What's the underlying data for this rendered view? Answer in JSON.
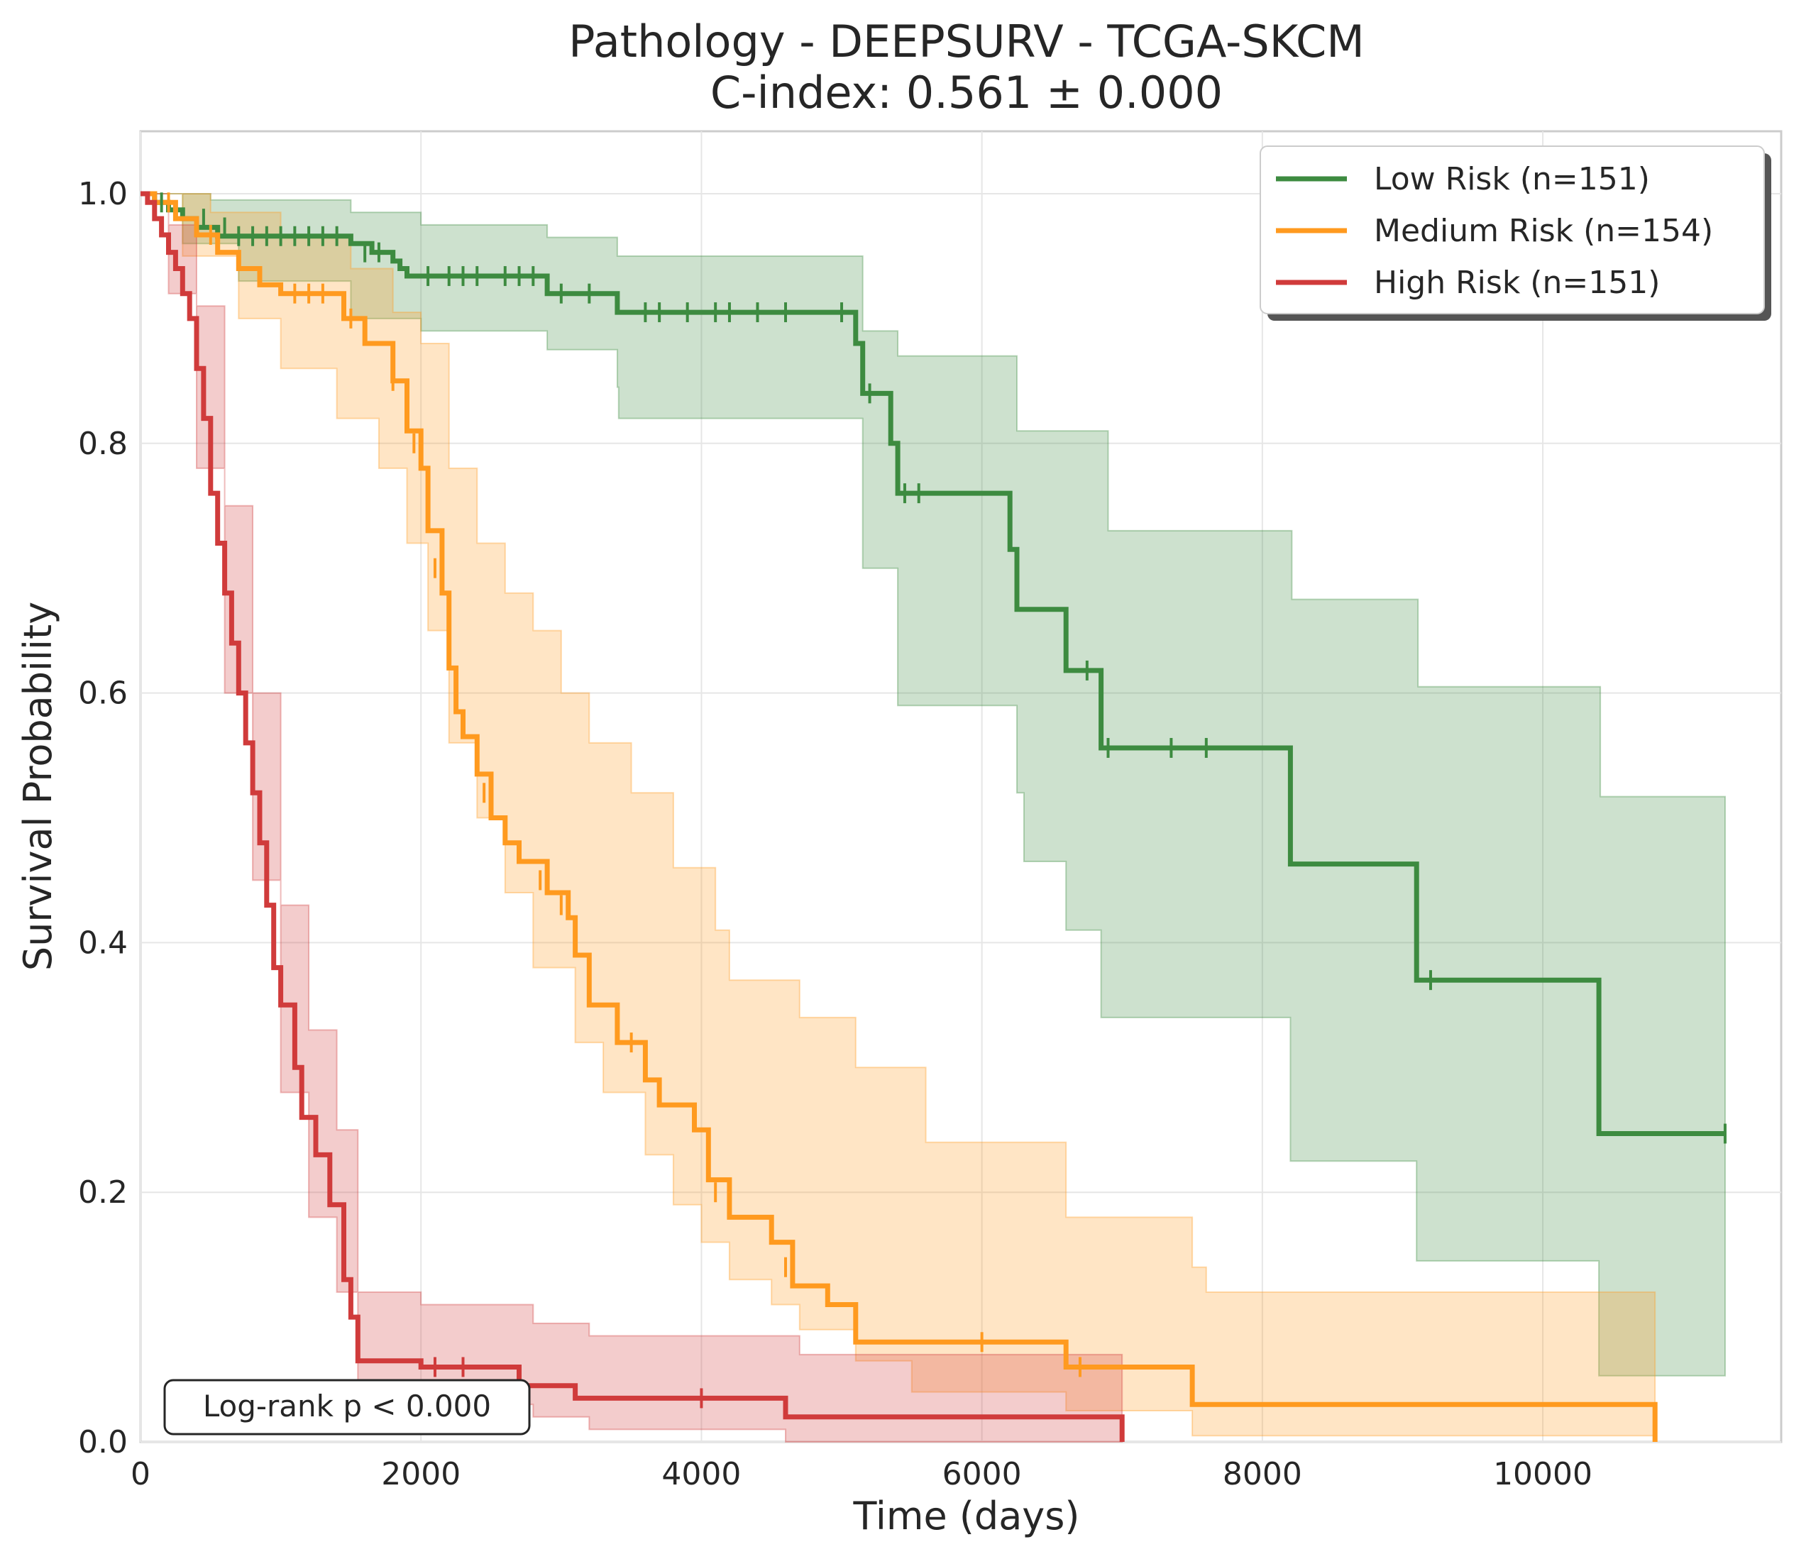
{
  "chart_data": {
    "type": "line",
    "title": "Pathology - DEEPSURV - TCGA-SKCM",
    "subtitle": "C-index: 0.561 ± 0.000",
    "xlabel": "Time (days)",
    "ylabel": "Survival Probability",
    "xlim": [
      0,
      11700
    ],
    "ylim": [
      0.0,
      1.05
    ],
    "x_ticks": [
      0,
      2000,
      4000,
      6000,
      8000,
      10000
    ],
    "y_ticks": [
      0.0,
      0.2,
      0.4,
      0.6,
      0.8,
      1.0
    ],
    "x_tick_labels": [
      "0",
      "2000",
      "4000",
      "6000",
      "8000",
      "10000"
    ],
    "y_tick_labels": [
      "0.0",
      "0.2",
      "0.4",
      "0.6",
      "0.8",
      "1.0"
    ],
    "grid": true,
    "legend_position": "top-right",
    "annotation": "Log-rank p < 0.000",
    "series": [
      {
        "name": "Low Risk (n=151)",
        "color": "#3d8b40",
        "steps": [
          [
            0,
            1.0
          ],
          [
            100,
            0.993
          ],
          [
            200,
            0.987
          ],
          [
            300,
            0.98
          ],
          [
            400,
            0.973
          ],
          [
            550,
            0.966
          ],
          [
            700,
            0.966
          ],
          [
            1500,
            0.96
          ],
          [
            1650,
            0.953
          ],
          [
            1800,
            0.946
          ],
          [
            1850,
            0.94
          ],
          [
            1900,
            0.934
          ],
          [
            2900,
            0.92
          ],
          [
            3400,
            0.905
          ],
          [
            5100,
            0.88
          ],
          [
            5150,
            0.84
          ],
          [
            5300,
            0.84
          ],
          [
            5350,
            0.8
          ],
          [
            5400,
            0.76
          ],
          [
            6150,
            0.76
          ],
          [
            6200,
            0.715
          ],
          [
            6250,
            0.667
          ],
          [
            6600,
            0.618
          ],
          [
            6850,
            0.556
          ],
          [
            8200,
            0.463
          ],
          [
            9100,
            0.37
          ],
          [
            10400,
            0.247
          ],
          [
            11300,
            0.247
          ]
        ],
        "ci_upper": [
          [
            0,
            1.0
          ],
          [
            500,
            0.995
          ],
          [
            1500,
            0.985
          ],
          [
            2000,
            0.975
          ],
          [
            2900,
            0.965
          ],
          [
            3400,
            0.95
          ],
          [
            5100,
            0.95
          ],
          [
            5150,
            0.89
          ],
          [
            5400,
            0.87
          ],
          [
            6200,
            0.87
          ],
          [
            6250,
            0.81
          ],
          [
            6850,
            0.81
          ],
          [
            6900,
            0.73
          ],
          [
            8200,
            0.73
          ],
          [
            8210,
            0.675
          ],
          [
            9100,
            0.675
          ],
          [
            9110,
            0.605
          ],
          [
            10400,
            0.605
          ],
          [
            10410,
            0.517
          ],
          [
            11300,
            0.517
          ]
        ],
        "ci_lower": [
          [
            0,
            1.0
          ],
          [
            300,
            0.96
          ],
          [
            700,
            0.93
          ],
          [
            1500,
            0.9
          ],
          [
            2000,
            0.89
          ],
          [
            2900,
            0.875
          ],
          [
            3400,
            0.845
          ],
          [
            3410,
            0.82
          ],
          [
            5100,
            0.82
          ],
          [
            5150,
            0.7
          ],
          [
            5400,
            0.59
          ],
          [
            6200,
            0.59
          ],
          [
            6250,
            0.52
          ],
          [
            6300,
            0.465
          ],
          [
            6600,
            0.41
          ],
          [
            6850,
            0.34
          ],
          [
            8200,
            0.225
          ],
          [
            9100,
            0.145
          ],
          [
            10400,
            0.053
          ],
          [
            11300,
            0.053
          ]
        ],
        "censored": [
          [
            150,
            0.993
          ],
          [
            450,
            0.98
          ],
          [
            600,
            0.973
          ],
          [
            700,
            0.966
          ],
          [
            800,
            0.966
          ],
          [
            900,
            0.966
          ],
          [
            1000,
            0.966
          ],
          [
            1100,
            0.966
          ],
          [
            1200,
            0.966
          ],
          [
            1300,
            0.966
          ],
          [
            1400,
            0.966
          ],
          [
            1600,
            0.953
          ],
          [
            1700,
            0.953
          ],
          [
            2050,
            0.934
          ],
          [
            2200,
            0.934
          ],
          [
            2300,
            0.934
          ],
          [
            2400,
            0.934
          ],
          [
            2600,
            0.934
          ],
          [
            2700,
            0.934
          ],
          [
            2800,
            0.934
          ],
          [
            3000,
            0.92
          ],
          [
            3200,
            0.92
          ],
          [
            3600,
            0.905
          ],
          [
            3700,
            0.905
          ],
          [
            3900,
            0.905
          ],
          [
            4100,
            0.905
          ],
          [
            4200,
            0.905
          ],
          [
            4400,
            0.905
          ],
          [
            4600,
            0.905
          ],
          [
            5000,
            0.905
          ],
          [
            5200,
            0.84
          ],
          [
            5450,
            0.76
          ],
          [
            5550,
            0.76
          ],
          [
            6750,
            0.618
          ],
          [
            6900,
            0.556
          ],
          [
            7350,
            0.556
          ],
          [
            7600,
            0.556
          ],
          [
            9200,
            0.37
          ],
          [
            11300,
            0.247
          ]
        ]
      },
      {
        "name": "Medium Risk (n=154)",
        "color": "#ff9a1f",
        "steps": [
          [
            0,
            1.0
          ],
          [
            100,
            0.993
          ],
          [
            250,
            0.98
          ],
          [
            400,
            0.967
          ],
          [
            550,
            0.953
          ],
          [
            700,
            0.94
          ],
          [
            850,
            0.927
          ],
          [
            1000,
            0.92
          ],
          [
            1450,
            0.9
          ],
          [
            1600,
            0.88
          ],
          [
            1800,
            0.85
          ],
          [
            1900,
            0.81
          ],
          [
            2000,
            0.78
          ],
          [
            2050,
            0.73
          ],
          [
            2150,
            0.68
          ],
          [
            2200,
            0.62
          ],
          [
            2250,
            0.585
          ],
          [
            2300,
            0.565
          ],
          [
            2400,
            0.535
          ],
          [
            2500,
            0.5
          ],
          [
            2600,
            0.48
          ],
          [
            2700,
            0.465
          ],
          [
            2900,
            0.44
          ],
          [
            3050,
            0.42
          ],
          [
            3100,
            0.39
          ],
          [
            3200,
            0.35
          ],
          [
            3400,
            0.32
          ],
          [
            3600,
            0.29
          ],
          [
            3700,
            0.27
          ],
          [
            3950,
            0.25
          ],
          [
            4050,
            0.21
          ],
          [
            4200,
            0.18
          ],
          [
            4500,
            0.16
          ],
          [
            4650,
            0.125
          ],
          [
            4900,
            0.11
          ],
          [
            5100,
            0.08
          ],
          [
            6600,
            0.06
          ],
          [
            7500,
            0.03
          ],
          [
            10800,
            0.03
          ],
          [
            10800,
            0.0
          ]
        ],
        "ci_upper": [
          [
            0,
            1.0
          ],
          [
            500,
            0.985
          ],
          [
            1000,
            0.965
          ],
          [
            1500,
            0.94
          ],
          [
            1800,
            0.905
          ],
          [
            2000,
            0.88
          ],
          [
            2200,
            0.78
          ],
          [
            2400,
            0.72
          ],
          [
            2600,
            0.68
          ],
          [
            2800,
            0.65
          ],
          [
            3000,
            0.6
          ],
          [
            3200,
            0.56
          ],
          [
            3500,
            0.52
          ],
          [
            3800,
            0.46
          ],
          [
            4100,
            0.41
          ],
          [
            4200,
            0.37
          ],
          [
            4700,
            0.34
          ],
          [
            5100,
            0.3
          ],
          [
            5600,
            0.24
          ],
          [
            6600,
            0.18
          ],
          [
            7500,
            0.14
          ],
          [
            7600,
            0.12
          ],
          [
            10800,
            0.12
          ]
        ],
        "ci_lower": [
          [
            0,
            1.0
          ],
          [
            300,
            0.95
          ],
          [
            700,
            0.9
          ],
          [
            1000,
            0.86
          ],
          [
            1400,
            0.82
          ],
          [
            1700,
            0.78
          ],
          [
            1900,
            0.72
          ],
          [
            2050,
            0.65
          ],
          [
            2200,
            0.56
          ],
          [
            2400,
            0.5
          ],
          [
            2600,
            0.44
          ],
          [
            2800,
            0.38
          ],
          [
            3100,
            0.32
          ],
          [
            3300,
            0.28
          ],
          [
            3600,
            0.23
          ],
          [
            3800,
            0.19
          ],
          [
            4000,
            0.16
          ],
          [
            4200,
            0.13
          ],
          [
            4500,
            0.11
          ],
          [
            4700,
            0.09
          ],
          [
            5100,
            0.065
          ],
          [
            5500,
            0.04
          ],
          [
            6600,
            0.025
          ],
          [
            7500,
            0.005
          ],
          [
            10800,
            0.0
          ]
        ],
        "censored": [
          [
            200,
            0.993
          ],
          [
            500,
            0.967
          ],
          [
            1100,
            0.92
          ],
          [
            1200,
            0.92
          ],
          [
            1300,
            0.92
          ],
          [
            1500,
            0.9
          ],
          [
            1800,
            0.85
          ],
          [
            1950,
            0.8
          ],
          [
            2100,
            0.7
          ],
          [
            2450,
            0.52
          ],
          [
            2850,
            0.45
          ],
          [
            3000,
            0.43
          ],
          [
            3500,
            0.32
          ],
          [
            3950,
            0.26
          ],
          [
            4100,
            0.2
          ],
          [
            4600,
            0.14
          ],
          [
            6000,
            0.08
          ],
          [
            6700,
            0.06
          ]
        ]
      },
      {
        "name": "High Risk (n=151)",
        "color": "#d03b3b",
        "steps": [
          [
            0,
            1.0
          ],
          [
            50,
            0.993
          ],
          [
            100,
            0.98
          ],
          [
            150,
            0.967
          ],
          [
            200,
            0.953
          ],
          [
            250,
            0.94
          ],
          [
            300,
            0.92
          ],
          [
            350,
            0.9
          ],
          [
            400,
            0.86
          ],
          [
            450,
            0.82
          ],
          [
            500,
            0.76
          ],
          [
            550,
            0.72
          ],
          [
            600,
            0.68
          ],
          [
            650,
            0.64
          ],
          [
            700,
            0.6
          ],
          [
            750,
            0.56
          ],
          [
            800,
            0.52
          ],
          [
            850,
            0.48
          ],
          [
            900,
            0.43
          ],
          [
            950,
            0.38
          ],
          [
            1000,
            0.35
          ],
          [
            1100,
            0.3
          ],
          [
            1150,
            0.26
          ],
          [
            1250,
            0.23
          ],
          [
            1350,
            0.19
          ],
          [
            1450,
            0.13
          ],
          [
            1500,
            0.1
          ],
          [
            1550,
            0.065
          ],
          [
            2000,
            0.06
          ],
          [
            2700,
            0.045
          ],
          [
            3100,
            0.035
          ],
          [
            4600,
            0.02
          ],
          [
            7000,
            0.02
          ],
          [
            7000,
            0.0
          ]
        ],
        "ci_upper": [
          [
            0,
            1.0
          ],
          [
            200,
            0.975
          ],
          [
            400,
            0.91
          ],
          [
            600,
            0.75
          ],
          [
            800,
            0.6
          ],
          [
            1000,
            0.43
          ],
          [
            1200,
            0.33
          ],
          [
            1400,
            0.25
          ],
          [
            1550,
            0.12
          ],
          [
            2000,
            0.11
          ],
          [
            2800,
            0.095
          ],
          [
            3200,
            0.085
          ],
          [
            4700,
            0.07
          ],
          [
            7000,
            0.07
          ]
        ],
        "ci_lower": [
          [
            0,
            1.0
          ],
          [
            200,
            0.92
          ],
          [
            400,
            0.78
          ],
          [
            600,
            0.6
          ],
          [
            800,
            0.45
          ],
          [
            1000,
            0.28
          ],
          [
            1200,
            0.18
          ],
          [
            1400,
            0.12
          ],
          [
            1550,
            0.04
          ],
          [
            2000,
            0.03
          ],
          [
            2800,
            0.02
          ],
          [
            3200,
            0.01
          ],
          [
            4600,
            0.0
          ],
          [
            7000,
            0.0
          ]
        ],
        "censored": [
          [
            2100,
            0.06
          ],
          [
            2300,
            0.06
          ],
          [
            4000,
            0.035
          ]
        ]
      }
    ]
  }
}
